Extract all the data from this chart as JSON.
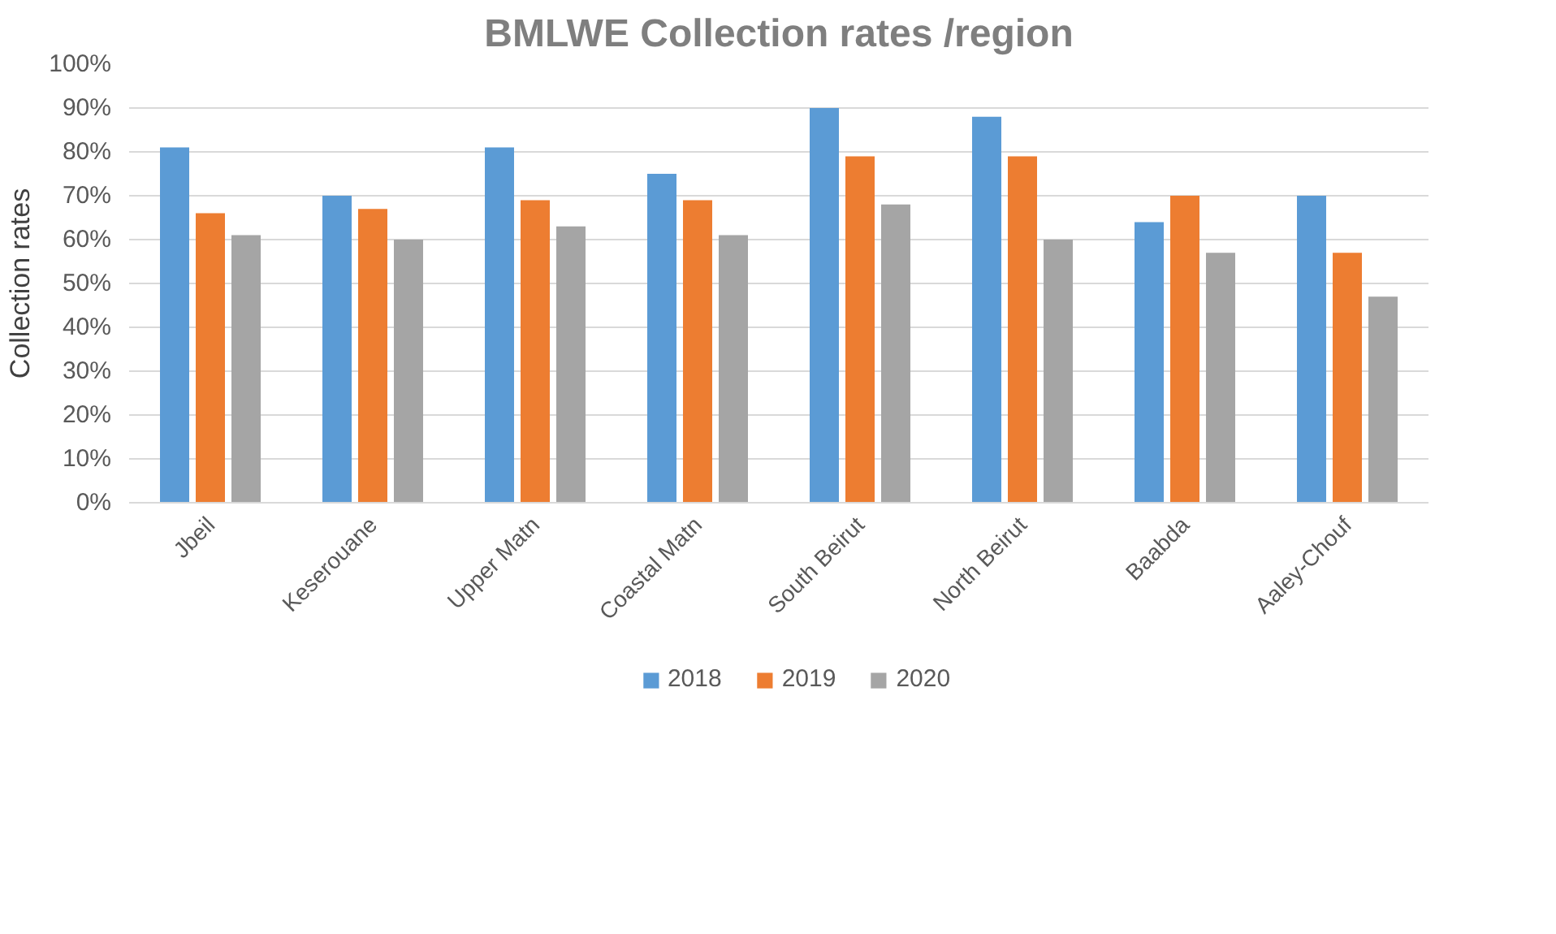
{
  "chart_data": {
    "type": "bar",
    "title": "BMLWE Collection rates /region",
    "ylabel": "Collection rates",
    "categories": [
      "Jbeil",
      "Keserouane",
      "Upper Matn",
      "Coastal Matn",
      "South Beirut",
      "North Beirut",
      "Baabda",
      "Aaley-Chouf"
    ],
    "series": [
      {
        "name": "2018",
        "color": "#5b9bd5",
        "values": [
          81,
          70,
          81,
          75,
          90,
          88,
          64,
          70
        ]
      },
      {
        "name": "2019",
        "color": "#ed7d31",
        "values": [
          66,
          67,
          69,
          69,
          79,
          79,
          70,
          57
        ]
      },
      {
        "name": "2020",
        "color": "#a5a5a5",
        "values": [
          61,
          60,
          63,
          61,
          68,
          60,
          57,
          47
        ]
      }
    ],
    "ylim": [
      0,
      100
    ],
    "yticks": [
      {
        "value": 0,
        "label": "0%"
      },
      {
        "value": 10,
        "label": "10%"
      },
      {
        "value": 20,
        "label": "20%"
      },
      {
        "value": 30,
        "label": "30%"
      },
      {
        "value": 40,
        "label": "40%"
      },
      {
        "value": 50,
        "label": "50%"
      },
      {
        "value": 60,
        "label": "60%"
      },
      {
        "value": 70,
        "label": "70%"
      },
      {
        "value": 80,
        "label": "80%"
      },
      {
        "value": 90,
        "label": "90%"
      },
      {
        "value": 100,
        "label": "100%"
      }
    ],
    "grid": "y",
    "legend": "bottom"
  }
}
